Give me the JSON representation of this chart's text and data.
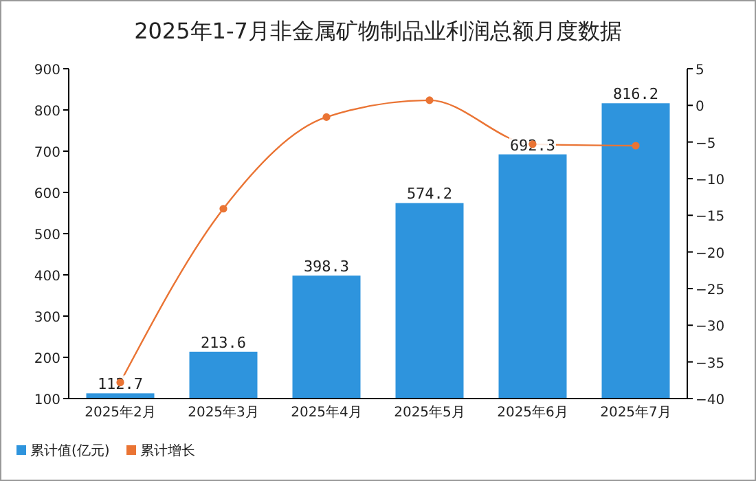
{
  "chart_data": {
    "type": "bar",
    "title": "2025年1-7月非金属矿物制品业利润总额月度数据",
    "categories": [
      "2025年2月",
      "2025年3月",
      "2025年4月",
      "2025年5月",
      "2025年6月",
      "2025年7月"
    ],
    "series": [
      {
        "name": "累计值(亿元)",
        "color": "#2e94dd",
        "values": [
          112.7,
          213.6,
          398.3,
          574.2,
          692.3,
          816.2
        ],
        "value_labels": [
          "112.7",
          "213.6",
          "398.3",
          "574.2",
          "692.3",
          "816.2"
        ]
      },
      {
        "name": "累计增长",
        "type": "line",
        "axis": "y2",
        "color": "#ea7434",
        "marker": "circle",
        "values": [
          -37.8,
          -14.1,
          -1.6,
          0.7,
          -5.3,
          -5.5
        ]
      }
    ],
    "ylim": [
      100,
      900
    ],
    "yticks": [
      100,
      200,
      300,
      400,
      500,
      600,
      700,
      800,
      900
    ],
    "y2lim": [
      -40,
      5
    ],
    "y2ticks": [
      -40,
      -35,
      -30,
      -25,
      -20,
      -15,
      -10,
      -5,
      0,
      5
    ],
    "legend": "bottom left",
    "grid": false
  }
}
